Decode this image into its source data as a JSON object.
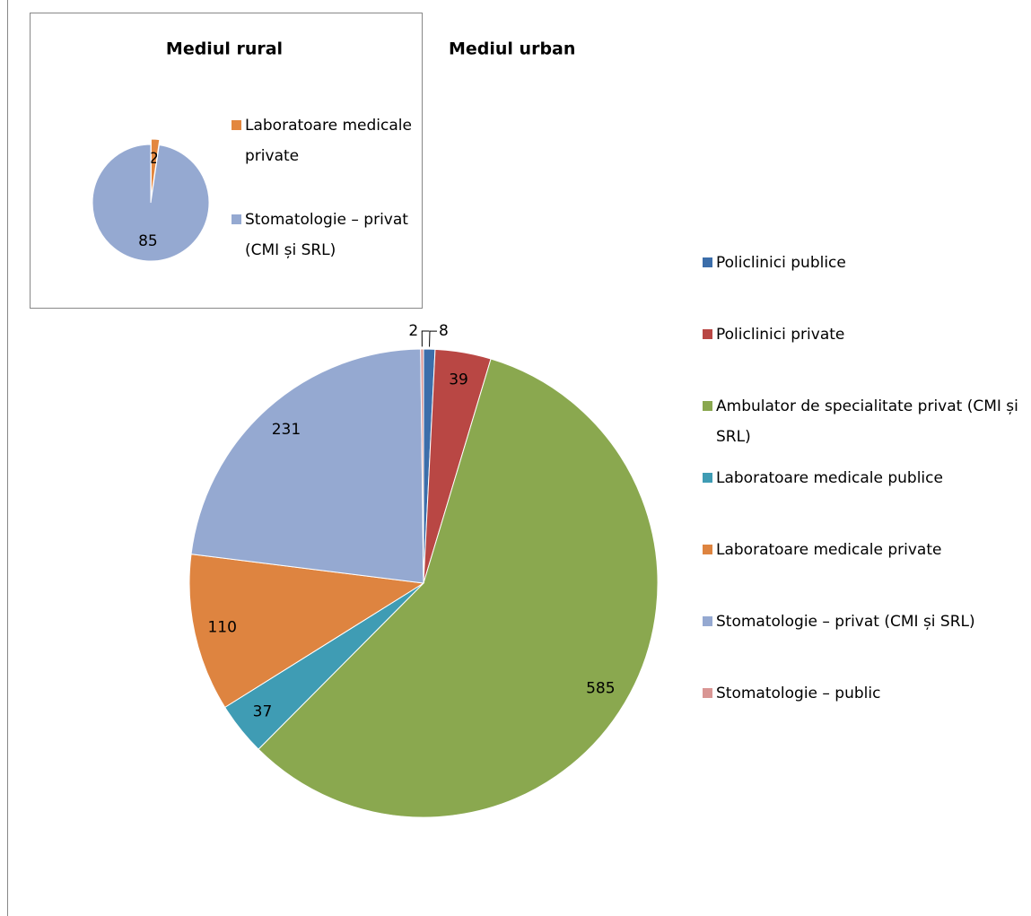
{
  "chart_data": [
    {
      "type": "pie",
      "title": "Mediul rural",
      "categories": [
        "Laboratoare medicale private",
        "Stomatologie – privat (CMI și SRL)"
      ],
      "values": [
        2,
        85
      ],
      "colors": [
        "#e3873f",
        "#95a9d1"
      ]
    },
    {
      "type": "pie",
      "title": "Mediul urban",
      "categories": [
        "Policlinici publice",
        "Policlinici private",
        "Ambulator de specialitate privat (CMI și SRL)",
        "Laboratoare medicale publice",
        "Laboratoare medicale private",
        "Stomatologie – privat (CMI și SRL)",
        "Stomatologie – public"
      ],
      "values": [
        8,
        39,
        585,
        37,
        110,
        231,
        2
      ],
      "colors": [
        "#3c6eaa",
        "#b94744",
        "#8aa84f",
        "#3f9cb4",
        "#de8440",
        "#95a9d1",
        "#d99694"
      ]
    }
  ]
}
